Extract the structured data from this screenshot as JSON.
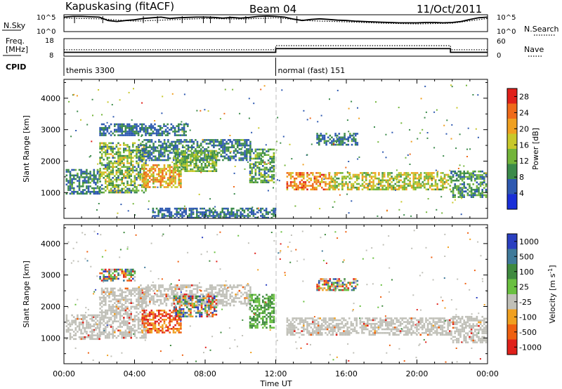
{
  "header": {
    "station": "Kapuskasing (fitACF)",
    "beam": "Beam 04",
    "date": "11/Oct/2011"
  },
  "top_labels": {
    "nsky": "N.Sky",
    "freq_line1": "Freq.",
    "freq_line2": "[MHz]",
    "cpid": "CPID",
    "nsearch": "N.Search",
    "nave": "Nave",
    "nsky_ticks": [
      "10^5",
      "10^0"
    ],
    "nsearch_ticks": [
      "10^5",
      "10^0"
    ],
    "freq_ticks": [
      "18",
      "8"
    ],
    "nave_ticks": [
      "60",
      "0"
    ]
  },
  "modes": [
    {
      "label": "themis 3300",
      "start_hour": 0,
      "end_hour": 12
    },
    {
      "label": "normal (fast) 151",
      "start_hour": 12,
      "end_hour": 24
    }
  ],
  "chart_data": [
    {
      "type": "line",
      "panel": "noise",
      "ylim_log10": [
        0,
        5
      ],
      "series": [
        {
          "name": "N.Sky",
          "style": "solid",
          "x": [
            0,
            0.5,
            1,
            1.5,
            2,
            2.5,
            3,
            3.5,
            4,
            4.5,
            5,
            5.5,
            6,
            6.5,
            7,
            7.5,
            8,
            8.5,
            9,
            9.5,
            10,
            10.5,
            11,
            11.5,
            12,
            12.5,
            13,
            13.5,
            14,
            14.5,
            15,
            15.5,
            16,
            16.5,
            17,
            17.5,
            18,
            18.5,
            19,
            19.5,
            20,
            20.5,
            21,
            21.5,
            22,
            22.5,
            23,
            23.5,
            24
          ],
          "y": [
            4.3,
            4.5,
            4.5,
            4.4,
            4.3,
            3.3,
            3.0,
            3.3,
            3.5,
            3.9,
            4.1,
            4.3,
            3.9,
            4.1,
            4.2,
            4.3,
            4.3,
            4.2,
            4.0,
            4.2,
            4.0,
            4.2,
            4.5,
            4.6,
            4.5,
            4.3,
            3.7,
            3.3,
            3.6,
            3.8,
            3.6,
            3.4,
            3.3,
            3.1,
            3.0,
            2.9,
            2.8,
            2.7,
            2.6,
            2.6,
            2.6,
            2.7,
            2.7,
            2.6,
            2.7,
            3.0,
            3.6,
            4.1,
            4.3
          ]
        },
        {
          "name": "N.Search",
          "style": "dotted",
          "x": [
            0,
            2,
            4,
            6,
            8,
            10,
            12,
            14,
            16,
            18,
            20,
            22,
            24
          ],
          "y": [
            4.0,
            3.8,
            3.1,
            3.5,
            3.9,
            3.7,
            4.1,
            3.2,
            2.9,
            2.5,
            2.3,
            2.5,
            3.9
          ]
        }
      ]
    },
    {
      "type": "line",
      "panel": "frequency-nave",
      "series": [
        {
          "name": "Freq.",
          "style": "solid",
          "units": "MHz",
          "x": [
            0,
            12,
            12,
            21.9,
            21.9,
            24
          ],
          "y": [
            10.2,
            10.2,
            12.3,
            12.3,
            10.2,
            10.2
          ]
        },
        {
          "name": "Nave",
          "style": "dotted",
          "x": [
            0,
            12,
            12,
            21.9,
            21.9,
            24
          ],
          "y": [
            22,
            22,
            36,
            36,
            22,
            22
          ]
        }
      ]
    },
    {
      "type": "heatmap",
      "panel": "power",
      "xlabel": "",
      "ylabel": "Slant Range [km]",
      "xlim_hours": [
        0,
        24
      ],
      "ylim_km": [
        180,
        4600
      ],
      "yticks": [
        1000,
        2000,
        3000,
        4000
      ],
      "colorbar": {
        "label": "Power [dB]",
        "ticks": [
          4,
          8,
          12,
          16,
          20,
          24,
          28
        ],
        "range": [
          0,
          30
        ]
      },
      "bands": [
        {
          "t": [
            0.1,
            2.0
          ],
          "r": [
            960,
            1750
          ],
          "value_range": [
            4,
            12
          ]
        },
        {
          "t": [
            2.0,
            4.6
          ],
          "r": [
            1000,
            2600
          ],
          "value_range": [
            6,
            20
          ]
        },
        {
          "t": [
            4.4,
            6.6
          ],
          "r": [
            1200,
            1900
          ],
          "value_range": [
            14,
            26
          ]
        },
        {
          "t": [
            4.2,
            10.6
          ],
          "r": [
            2050,
            2700
          ],
          "value_range": [
            4,
            12
          ]
        },
        {
          "t": [
            6.2,
            8.6
          ],
          "r": [
            1700,
            2350
          ],
          "value_range": [
            8,
            18
          ]
        },
        {
          "t": [
            10.5,
            11.9
          ],
          "r": [
            1300,
            2400
          ],
          "value_range": [
            6,
            16
          ]
        },
        {
          "t": [
            2.0,
            7.0
          ],
          "r": [
            2800,
            3200
          ],
          "value_range": [
            4,
            10
          ]
        },
        {
          "t": [
            12.6,
            15.0
          ],
          "r": [
            1100,
            1650
          ],
          "value_range": [
            16,
            28
          ]
        },
        {
          "t": [
            15.0,
            21.9
          ],
          "r": [
            1100,
            1650
          ],
          "value_range": [
            10,
            22
          ]
        },
        {
          "t": [
            21.9,
            23.9
          ],
          "r": [
            850,
            1700
          ],
          "value_range": [
            4,
            14
          ]
        },
        {
          "t": [
            14.3,
            16.6
          ],
          "r": [
            2550,
            2900
          ],
          "value_range": [
            4,
            12
          ]
        },
        {
          "t": [
            5.0,
            12.0
          ],
          "r": [
            200,
            520
          ],
          "value_range": [
            4,
            10
          ]
        }
      ]
    },
    {
      "type": "heatmap",
      "panel": "velocity",
      "xlabel": "Time UT",
      "ylabel": "Slant Range [km]",
      "xlim_hours": [
        0,
        24
      ],
      "ylim_km": [
        180,
        4600
      ],
      "xticks": [
        "00:00",
        "04:00",
        "08:00",
        "12:00",
        "16:00",
        "20:00",
        "00:00"
      ],
      "yticks": [
        1000,
        2000,
        3000,
        4000
      ],
      "colorbar": {
        "label": "Velocity [m s",
        "label_exp": "-1",
        "ticks": [
          "1000",
          "500",
          "100",
          "25",
          "-25",
          "-100",
          "-500",
          "-1000"
        ]
      },
      "bands": [
        {
          "t": [
            0.1,
            2.0
          ],
          "r": [
            960,
            1750
          ],
          "class": "ground"
        },
        {
          "t": [
            2.0,
            4.6
          ],
          "r": [
            1000,
            2600
          ],
          "class": "ground"
        },
        {
          "t": [
            4.2,
            10.6
          ],
          "r": [
            2050,
            2700
          ],
          "class": "ground"
        },
        {
          "t": [
            4.4,
            6.6
          ],
          "r": [
            1200,
            1900
          ],
          "class": "negative"
        },
        {
          "t": [
            6.2,
            8.6
          ],
          "r": [
            1700,
            2350
          ],
          "class": "mixed"
        },
        {
          "t": [
            10.5,
            11.9
          ],
          "r": [
            1300,
            2400
          ],
          "class": "positive-low"
        },
        {
          "t": [
            12.6,
            21.9
          ],
          "r": [
            1100,
            1650
          ],
          "class": "ground"
        },
        {
          "t": [
            21.9,
            23.9
          ],
          "r": [
            850,
            1700
          ],
          "class": "ground"
        },
        {
          "t": [
            14.3,
            16.6
          ],
          "r": [
            2550,
            2900
          ],
          "class": "mixed"
        },
        {
          "t": [
            2.0,
            4.0
          ],
          "r": [
            2800,
            3200
          ],
          "class": "mixed"
        }
      ]
    }
  ],
  "colors": {
    "power_scale": [
      "#1a2fd8",
      "#2e59b0",
      "#3b8a4a",
      "#73b53a",
      "#c8c82a",
      "#f0a020",
      "#ef6a1a",
      "#e0201a"
    ],
    "velocity_scale": [
      "#2a3fc0",
      "#3f7a9a",
      "#3f8a3f",
      "#6ac040",
      "#c0c0b8",
      "#f0a020",
      "#ef6010",
      "#e0201a"
    ],
    "ground": "#c0c0b8"
  }
}
